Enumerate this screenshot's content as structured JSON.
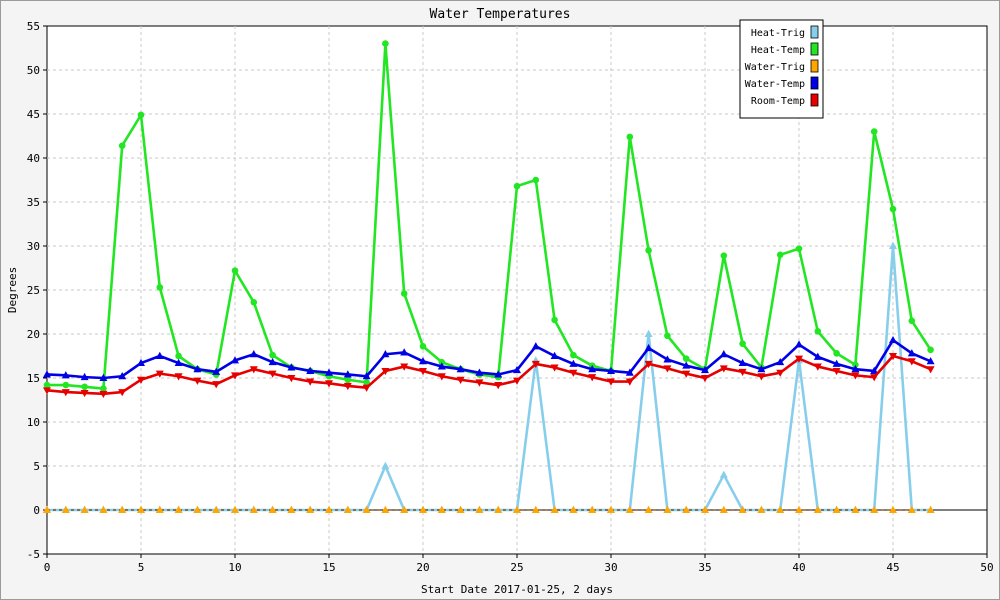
{
  "chart_data": {
    "type": "line",
    "title": "Water Temperatures",
    "xlabel": "Start Date 2017-01-25, 2 days",
    "ylabel": "Degrees",
    "xlim": [
      0,
      50
    ],
    "ylim": [
      -5,
      55
    ],
    "x_ticks": [
      0,
      5,
      10,
      15,
      20,
      25,
      30,
      35,
      40,
      45,
      50
    ],
    "y_ticks": [
      -5,
      0,
      5,
      10,
      15,
      20,
      25,
      30,
      35,
      40,
      45,
      50,
      55
    ],
    "grid": true,
    "legend_position": "top-right",
    "x": [
      0,
      1,
      2,
      3,
      4,
      5,
      6,
      7,
      8,
      9,
      10,
      11,
      12,
      13,
      14,
      15,
      16,
      17,
      18,
      19,
      20,
      21,
      22,
      23,
      24,
      25,
      26,
      27,
      28,
      29,
      30,
      31,
      32,
      33,
      34,
      35,
      36,
      37,
      38,
      39,
      40,
      41,
      42,
      43,
      44,
      45,
      46,
      47
    ],
    "series": [
      {
        "name": "Heat-Trig",
        "color": "#87ceeb",
        "marker": "triangle",
        "values": [
          0,
          0,
          0,
          0,
          0,
          0,
          0,
          0,
          0,
          0,
          0,
          0,
          0,
          0,
          0,
          0,
          0,
          0,
          5,
          0,
          0,
          0,
          0,
          0,
          0,
          0,
          17,
          0,
          0,
          0,
          0,
          0,
          20,
          0,
          0,
          0,
          4,
          0,
          0,
          0,
          17,
          0,
          0,
          0,
          0,
          30,
          0,
          0
        ]
      },
      {
        "name": "Heat-Temp",
        "color": "#22e622",
        "marker": "circle",
        "values": [
          14.2,
          14.2,
          14.0,
          13.8,
          41.4,
          44.9,
          25.3,
          17.5,
          16.0,
          15.4,
          27.2,
          23.6,
          17.6,
          16.2,
          15.8,
          15.2,
          14.8,
          14.5,
          53.0,
          24.6,
          18.6,
          16.8,
          16.0,
          15.4,
          15.1,
          36.8,
          37.5,
          21.6,
          17.6,
          16.4,
          15.8,
          42.4,
          29.5,
          19.8,
          17.2,
          16.0,
          28.9,
          18.9,
          16.2,
          29.0,
          29.7,
          20.3,
          17.8,
          16.5,
          43.0,
          34.2,
          21.5,
          18.2
        ]
      },
      {
        "name": "Water-Trig",
        "color": "#ffa500",
        "marker": "triangle",
        "values": [
          0,
          0,
          0,
          0,
          0,
          0,
          0,
          0,
          0,
          0,
          0,
          0,
          0,
          0,
          0,
          0,
          0,
          0,
          0,
          0,
          0,
          0,
          0,
          0,
          0,
          0,
          0,
          0,
          0,
          0,
          0,
          0,
          0,
          0,
          0,
          0,
          0,
          0,
          0,
          0,
          0,
          0,
          0,
          0,
          0,
          0,
          0,
          0
        ]
      },
      {
        "name": "Water-Temp",
        "color": "#0000e6",
        "marker": "triangle",
        "values": [
          15.4,
          15.3,
          15.1,
          15.0,
          15.2,
          16.7,
          17.5,
          16.7,
          16.0,
          15.7,
          17.0,
          17.7,
          16.8,
          16.2,
          15.8,
          15.6,
          15.4,
          15.2,
          17.7,
          17.9,
          16.9,
          16.3,
          16.0,
          15.6,
          15.4,
          15.9,
          18.6,
          17.5,
          16.6,
          16.0,
          15.8,
          15.6,
          18.4,
          17.1,
          16.4,
          15.9,
          17.7,
          16.7,
          16.0,
          16.8,
          18.8,
          17.4,
          16.6,
          16.0,
          15.8,
          19.3,
          17.8,
          16.9
        ]
      },
      {
        "name": "Room-Temp",
        "color": "#e60000",
        "marker": "triangle-down",
        "values": [
          13.6,
          13.4,
          13.3,
          13.2,
          13.4,
          14.8,
          15.5,
          15.2,
          14.7,
          14.3,
          15.3,
          16.0,
          15.5,
          15.0,
          14.6,
          14.4,
          14.1,
          13.9,
          15.8,
          16.3,
          15.8,
          15.2,
          14.8,
          14.5,
          14.2,
          14.7,
          16.6,
          16.2,
          15.6,
          15.1,
          14.6,
          14.6,
          16.6,
          16.1,
          15.5,
          15.0,
          16.1,
          15.7,
          15.2,
          15.6,
          17.2,
          16.3,
          15.8,
          15.3,
          15.1,
          17.5,
          16.9,
          16.0
        ]
      }
    ]
  }
}
